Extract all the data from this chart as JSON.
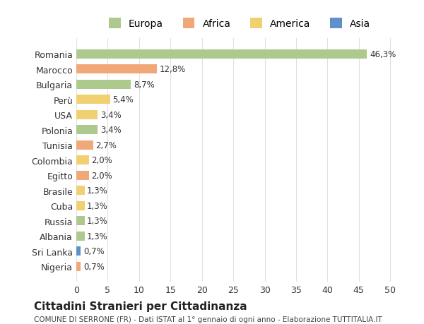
{
  "countries": [
    "Romania",
    "Marocco",
    "Bulgaria",
    "Perù",
    "USA",
    "Polonia",
    "Tunisia",
    "Colombia",
    "Egitto",
    "Brasile",
    "Cuba",
    "Russia",
    "Albania",
    "Sri Lanka",
    "Nigeria"
  ],
  "values": [
    46.3,
    12.8,
    8.7,
    5.4,
    3.4,
    3.4,
    2.7,
    2.0,
    2.0,
    1.3,
    1.3,
    1.3,
    1.3,
    0.7,
    0.7
  ],
  "labels": [
    "46,3%",
    "12,8%",
    "8,7%",
    "5,4%",
    "3,4%",
    "3,4%",
    "2,7%",
    "2,0%",
    "2,0%",
    "1,3%",
    "1,3%",
    "1,3%",
    "1,3%",
    "0,7%",
    "0,7%"
  ],
  "continents": [
    "Europa",
    "Africa",
    "Europa",
    "America",
    "America",
    "Europa",
    "Africa",
    "America",
    "Africa",
    "America",
    "America",
    "Europa",
    "Europa",
    "Asia",
    "Africa"
  ],
  "continent_colors": {
    "Europa": "#aec98e",
    "Africa": "#f0a878",
    "America": "#f0d070",
    "Asia": "#6090c8"
  },
  "legend_order": [
    "Europa",
    "Africa",
    "America",
    "Asia"
  ],
  "title": "Cittadini Stranieri per Cittadinanza",
  "subtitle": "COMUNE DI SERRONE (FR) - Dati ISTAT al 1° gennaio di ogni anno - Elaborazione TUTTITALIA.IT",
  "xlabel_ticks": [
    0,
    5,
    10,
    15,
    20,
    25,
    30,
    35,
    40,
    45,
    50
  ],
  "xlim": [
    0,
    52
  ],
  "background_color": "#ffffff",
  "grid_color": "#e0e0e0"
}
